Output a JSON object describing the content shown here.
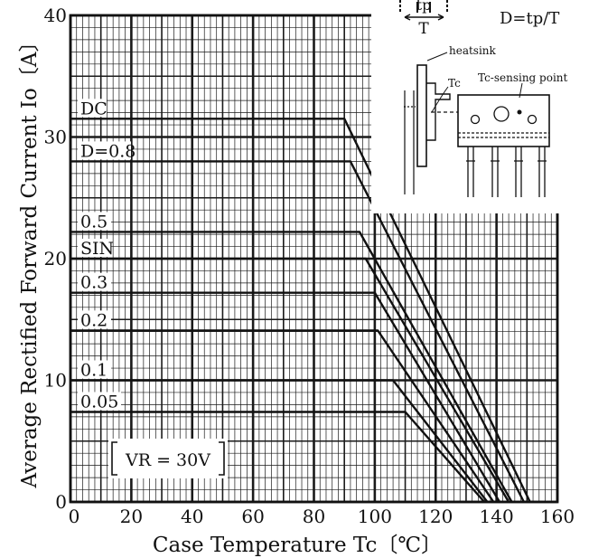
{
  "chart_data": {
    "type": "line",
    "title": "",
    "xlabel": "Case Temperature Tc〔℃〕",
    "ylabel": "Average Rectified Forward Current Io〔A〕",
    "xlim": [
      0,
      160
    ],
    "ylim": [
      0,
      40
    ],
    "x_ticks": [
      "0",
      "20",
      "40",
      "60",
      "80",
      "100",
      "120",
      "140",
      "160"
    ],
    "y_ticks": [
      "0",
      "10",
      "20",
      "30",
      "40"
    ],
    "grid": true,
    "annotation": "VR = 30V",
    "series": [
      {
        "name": "DC",
        "points": [
          [
            0,
            31.5
          ],
          [
            90,
            31.5
          ],
          [
            151,
            0
          ]
        ]
      },
      {
        "name": "D=0.8",
        "points": [
          [
            0,
            28.0
          ],
          [
            92,
            28.0
          ],
          [
            149,
            0
          ]
        ]
      },
      {
        "name": "0.5",
        "points": [
          [
            0,
            22.2
          ],
          [
            95,
            22.2
          ],
          [
            145,
            0
          ]
        ]
      },
      {
        "name": "SIN",
        "points": [
          [
            0,
            20.0
          ],
          [
            97,
            20.0
          ],
          [
            144,
            0
          ]
        ]
      },
      {
        "name": "0.3",
        "points": [
          [
            0,
            17.2
          ],
          [
            100,
            17.2
          ],
          [
            141,
            0
          ]
        ]
      },
      {
        "name": "0.2",
        "points": [
          [
            0,
            14.1
          ],
          [
            101,
            14.1
          ],
          [
            139,
            0
          ]
        ]
      },
      {
        "name": "0.1",
        "points": [
          [
            0,
            10.0
          ],
          [
            106,
            10.0
          ],
          [
            137,
            0
          ]
        ]
      },
      {
        "name": "0.05",
        "points": [
          [
            0,
            7.4
          ],
          [
            110,
            7.4
          ],
          [
            136,
            0
          ]
        ]
      }
    ]
  },
  "inset": {
    "tp_label": "tp",
    "period_label": "T",
    "formula": "D=tp/T",
    "heatsink_label": "heatsink",
    "tc_label": "Tc",
    "sensing_label": "Tc-sensing point"
  }
}
